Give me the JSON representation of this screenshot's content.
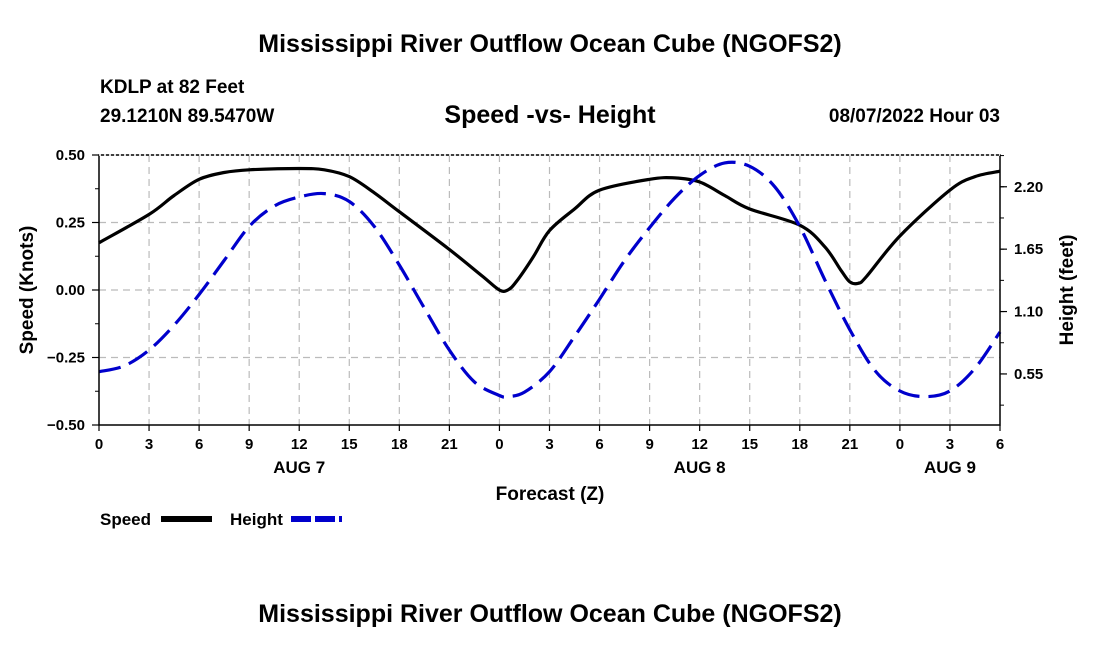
{
  "header": {
    "title": "Mississippi River Outflow Ocean Cube (NGOFS2)",
    "station": "KDLP at 82 Feet",
    "coords": "29.1210N  89.5470W",
    "subtitle": "Speed -vs- Height",
    "datetime": "08/07/2022 Hour 03"
  },
  "footer": {
    "title": "Mississippi River Outflow Ocean Cube (NGOFS2)"
  },
  "colors": {
    "speed": "#000000",
    "height": "#0000cc",
    "grid": "#bbbbbb"
  },
  "chart_data": {
    "type": "line",
    "x_unit": "hours from 00Z Aug 7",
    "x_range": [
      0,
      54
    ],
    "x_ticks": [
      0,
      3,
      6,
      9,
      12,
      15,
      18,
      21,
      24,
      27,
      30,
      33,
      36,
      39,
      42,
      45,
      48,
      51,
      54
    ],
    "x_tick_labels": [
      "0",
      "3",
      "6",
      "9",
      "12",
      "15",
      "18",
      "21",
      "0",
      "3",
      "6",
      "9",
      "12",
      "15",
      "18",
      "21",
      "0",
      "3",
      "6"
    ],
    "date_labels": [
      {
        "x": 12,
        "label": "AUG 7"
      },
      {
        "x": 36,
        "label": "AUG 8"
      },
      {
        "x": 51,
        "label": "AUG 9"
      }
    ],
    "xlabel": "Forecast (Z)",
    "y_left": {
      "label": "Speed (Knots)",
      "range": [
        -0.5,
        0.5
      ],
      "ticks": [
        -0.5,
        -0.25,
        0.0,
        0.25,
        0.5
      ],
      "tick_labels": [
        "−0.50",
        "−0.25",
        "0.00",
        "0.25",
        "0.50"
      ]
    },
    "y_right": {
      "label": "Height (feet)",
      "range": [
        0.1,
        2.48
      ],
      "ticks": [
        0.55,
        1.1,
        1.65,
        2.2
      ],
      "tick_labels": [
        "0.55",
        "1.10",
        "1.65",
        "2.20"
      ]
    },
    "legend": [
      {
        "name": "Speed",
        "style": "solid"
      },
      {
        "name": "Height",
        "style": "dashed"
      }
    ],
    "series": [
      {
        "name": "Speed",
        "axis": "left",
        "style": "solid",
        "x": [
          0,
          3,
          4.5,
          6,
          7.5,
          9,
          12,
          13.5,
          15,
          16.5,
          18,
          21,
          23,
          24,
          24.5,
          25,
          26,
          27,
          28.5,
          30,
          33,
          34.5,
          36,
          37.5,
          39,
          42,
          43.5,
          44.5,
          45,
          45.5,
          46,
          48,
          51,
          52.5,
          54
        ],
        "y": [
          0.175,
          0.28,
          0.35,
          0.41,
          0.435,
          0.445,
          0.45,
          0.445,
          0.42,
          0.36,
          0.29,
          0.15,
          0.05,
          0.0,
          0.0,
          0.03,
          0.12,
          0.22,
          0.3,
          0.37,
          0.41,
          0.415,
          0.4,
          0.35,
          0.3,
          0.24,
          0.16,
          0.07,
          0.03,
          0.025,
          0.05,
          0.2,
          0.37,
          0.42,
          0.44
        ]
      },
      {
        "name": "Height",
        "axis": "right",
        "style": "dashed",
        "x": [
          0,
          1.5,
          3,
          4.5,
          6,
          7.5,
          9,
          10.5,
          12,
          13.5,
          15,
          16.5,
          18,
          19.5,
          21,
          22.5,
          24,
          24.5,
          25.5,
          27,
          28.5,
          30,
          31.5,
          33,
          34.5,
          36,
          37.5,
          39,
          40.5,
          42,
          43.5,
          45,
          46.5,
          48,
          49.5,
          51,
          52.5,
          54
        ],
        "y": [
          0.57,
          0.62,
          0.76,
          0.98,
          1.25,
          1.55,
          1.85,
          2.03,
          2.11,
          2.14,
          2.07,
          1.85,
          1.51,
          1.13,
          0.76,
          0.48,
          0.36,
          0.35,
          0.39,
          0.57,
          0.88,
          1.21,
          1.55,
          1.84,
          2.1,
          2.3,
          2.41,
          2.38,
          2.2,
          1.85,
          1.38,
          0.94,
          0.58,
          0.4,
          0.35,
          0.4,
          0.6,
          0.92
        ]
      }
    ]
  }
}
